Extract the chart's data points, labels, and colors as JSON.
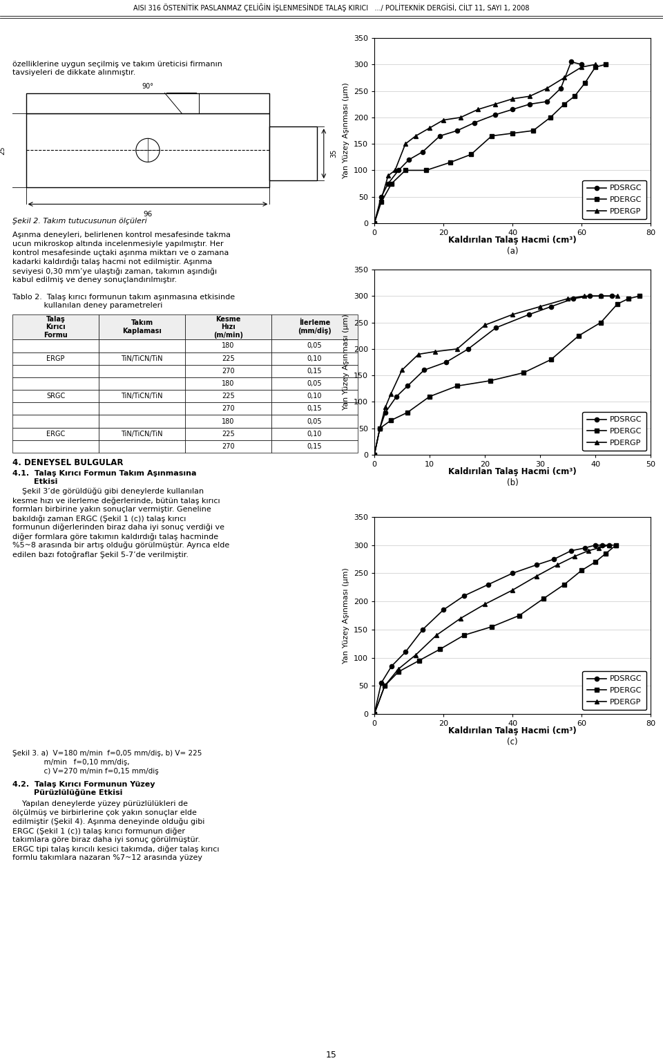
{
  "page_bg": "#ffffff",
  "header_text": "AISI 316 ÖSTENİTİK PASLANMAZ ÇELİĞİN İŞLENMESİNDE TALAŞ KIRICI   .../ POLİTEKNİK DERGİSİ, CİLT 11, SAYI 1, 2008",
  "line_color": "#000000",
  "grid_color": "#c8c8c8",
  "legend_labels": [
    "PDSRGC",
    "PDERGC",
    "PDERGP"
  ],
  "marker_circle": "o",
  "marker_square": "s",
  "marker_triangle": "^",
  "chart_a": {
    "ylabel": "Yan Yüzey Aşınması (μm)",
    "xlim": [
      0,
      80
    ],
    "ylim": [
      0,
      350
    ],
    "xticks": [
      0,
      20,
      40,
      60,
      80
    ],
    "yticks": [
      0,
      50,
      100,
      150,
      200,
      250,
      300,
      350
    ],
    "xlabel_bold": "Kaldırılan Talaş Hacmi (cm³)",
    "sublabel": "(a)",
    "PDSRGC_x": [
      0,
      2,
      4,
      7,
      10,
      14,
      19,
      24,
      29,
      35,
      40,
      45,
      50,
      54,
      57,
      60
    ],
    "PDSRGC_y": [
      0,
      50,
      75,
      100,
      120,
      135,
      165,
      175,
      190,
      205,
      215,
      225,
      230,
      255,
      305,
      300
    ],
    "PDERGC_x": [
      0,
      2,
      5,
      9,
      15,
      22,
      28,
      34,
      40,
      46,
      51,
      55,
      58,
      61,
      64,
      67
    ],
    "PDERGC_y": [
      0,
      40,
      75,
      100,
      100,
      115,
      130,
      165,
      170,
      175,
      200,
      225,
      240,
      265,
      295,
      300
    ],
    "PDERGP_x": [
      0,
      2,
      4,
      6,
      9,
      12,
      16,
      20,
      25,
      30,
      35,
      40,
      45,
      50,
      55,
      60,
      64
    ],
    "PDERGP_y": [
      0,
      45,
      90,
      100,
      150,
      165,
      180,
      195,
      200,
      215,
      225,
      235,
      240,
      255,
      275,
      295,
      300
    ]
  },
  "chart_b": {
    "ylabel": "Yan Yüzey Aşınması (μm)",
    "xlim": [
      0,
      50
    ],
    "ylim": [
      0,
      350
    ],
    "xticks": [
      0,
      10,
      20,
      30,
      40,
      50
    ],
    "yticks": [
      0,
      50,
      100,
      150,
      200,
      250,
      300,
      350
    ],
    "xlabel_bold": "Kaldırılan Talaş Hacmi (cm³)",
    "sublabel": "(b)",
    "PDSRGC_x": [
      0,
      1,
      2,
      4,
      6,
      9,
      13,
      17,
      22,
      28,
      32,
      36,
      39,
      41,
      43
    ],
    "PDSRGC_y": [
      0,
      50,
      80,
      110,
      130,
      160,
      175,
      200,
      240,
      265,
      280,
      295,
      300,
      300,
      300
    ],
    "PDERGC_x": [
      0,
      1,
      3,
      6,
      10,
      15,
      21,
      27,
      32,
      37,
      41,
      44,
      46,
      48
    ],
    "PDERGC_y": [
      0,
      50,
      65,
      80,
      110,
      130,
      140,
      155,
      180,
      225,
      250,
      285,
      295,
      300
    ],
    "PDERGP_x": [
      0,
      1,
      2,
      3,
      5,
      8,
      11,
      15,
      20,
      25,
      30,
      35,
      38,
      41,
      44
    ],
    "PDERGP_y": [
      0,
      50,
      90,
      115,
      160,
      190,
      195,
      200,
      245,
      265,
      280,
      295,
      300,
      300,
      300
    ]
  },
  "chart_c": {
    "ylabel": "Yan Yüzey Aşınması (μm)",
    "xlim": [
      0,
      80
    ],
    "ylim": [
      0,
      350
    ],
    "xticks": [
      0,
      20,
      40,
      60,
      80
    ],
    "yticks": [
      0,
      50,
      100,
      150,
      200,
      250,
      300,
      350
    ],
    "xlabel_bold": "Kaldırılan Talaş Hacmi (cm³)",
    "sublabel": "(c)",
    "PDSRGC_x": [
      0,
      2,
      5,
      9,
      14,
      20,
      26,
      33,
      40,
      47,
      52,
      57,
      61,
      64,
      66,
      68
    ],
    "PDSRGC_y": [
      0,
      55,
      85,
      110,
      150,
      185,
      210,
      230,
      250,
      265,
      275,
      290,
      295,
      300,
      300,
      300
    ],
    "PDERGC_x": [
      0,
      3,
      7,
      13,
      19,
      26,
      34,
      42,
      49,
      55,
      60,
      64,
      67,
      70
    ],
    "PDERGC_y": [
      0,
      50,
      75,
      95,
      115,
      140,
      155,
      175,
      205,
      230,
      255,
      270,
      285,
      300
    ],
    "PDERGP_x": [
      0,
      3,
      7,
      12,
      18,
      25,
      32,
      40,
      47,
      53,
      58,
      62,
      65,
      68,
      70
    ],
    "PDERGP_y": [
      0,
      50,
      80,
      105,
      140,
      170,
      195,
      220,
      245,
      265,
      280,
      290,
      295,
      300,
      300
    ]
  },
  "text_intro": "özelliklerine uygun seçilmiş ve takım üreticisi firmanın\ntavsiyeleri de dikkate alınmıştır.",
  "text_sekil2": "Şekil 2. Takım tutucusunun ölçüleri",
  "text_body1_lines": [
    "Aşınma deneyleri, belirlenen kontrol mesafesinde takma",
    "ucun mikroskop altında incelenmesiyle yapılmıştır. Her",
    "kontrol mesafesinde uçtaki aşınma miktarı ve o zamana",
    "kadarki kaldırdığı talaş hacmi not edilmiştir. Aşınma",
    "seviyesi 0,30 mm’ye ulaştığı zaman, takımın aşındığı",
    "kabul edilmiş ve deney sonuçlandırılmıştır."
  ],
  "text_tablo2": "Tablo 2.  Talaş kırıcı formunun takım aşınmasına etkisinde\n             kullanılan deney parametreleri",
  "text_sec4": "4. DENEYSEL BULGULAR",
  "text_sec41": "4.1.  Talaş Kırıcı Formun Takım Aşınmasına\n        Etkisi",
  "text_body2_lines": [
    "    Şekil 3’de görüldüğü gibi deneylerde kullanılan",
    "kesme hızı ve ilerleme değerlerinde, bütün talaş kırıcı",
    "formları birbirine yakın sonuçlar vermiştir. Geneline",
    "bakıldığı zaman ERGC (Şekil 1 (c)) talaş kırıcı",
    "formunun diğerlerinden biraz daha iyi sonuç verdiği ve",
    "diğer formlara göre takımın kaldırdığı talaş hacminde",
    "%5~8 arasında bir artış olduğu görülmüştür. Ayrıca elde",
    "edilen bazı fotoğraflar Şekil 5-7’de verilmiştir."
  ],
  "text_sekil3_line1": "Şekil 3. a)  V=180 m/min  f=0,05 mm/diş, b) V= 225",
  "text_sekil3_line2": "              m/min   f=0,10 mm/diş,",
  "text_sekil3_line3": "              c) V=270 m/min f=0,15 mm/diş",
  "text_sec42": "4.2.  Talaş Kırıcı Formunun Yüzey\n        Pürüzlülüğüne Etkisi",
  "text_body3_lines": [
    "    Yapılan deneylerde yüzey pürüzlülükleri de",
    "ölçülmüş ve birbirlerine çok yakın sonuçlar elde",
    "edilmiştir (Şekil 4). Aşınma deneyinde olduğu gibi",
    "ERGC (Şekil 1 (c)) talaş kırıcı formunun diğer",
    "takımlara göre biraz daha iyi sonuç görülmüştür.",
    "ERGC tipi talaş kırıcılı kesici takımda, diğer talaş kırıcı",
    "formlu takımlara nazaran %7~12 arasında yüzey"
  ],
  "text_page_num": "15",
  "col_headers": [
    "Talaş\nKırıcı\nFormu",
    "Takım\nKaplaması",
    "Kesme\nHızı\n(m/min)",
    "İlerleme\n(mm/diş)"
  ],
  "table_rows": [
    [
      "",
      "",
      "180",
      "0,05"
    ],
    [
      "ERGP",
      "TiN/TiCN/TiN",
      "225",
      "0,10"
    ],
    [
      "",
      "",
      "270",
      "0,15"
    ],
    [
      "",
      "",
      "180",
      "0,05"
    ],
    [
      "SRGC",
      "TiN/TiCN/TiN",
      "225",
      "0,10"
    ],
    [
      "",
      "",
      "270",
      "0,15"
    ],
    [
      "",
      "",
      "180",
      "0,05"
    ],
    [
      "ERGC",
      "TiN/TiCN/TiN",
      "225",
      "0,10"
    ],
    [
      "",
      "",
      "270",
      "0,15"
    ]
  ]
}
